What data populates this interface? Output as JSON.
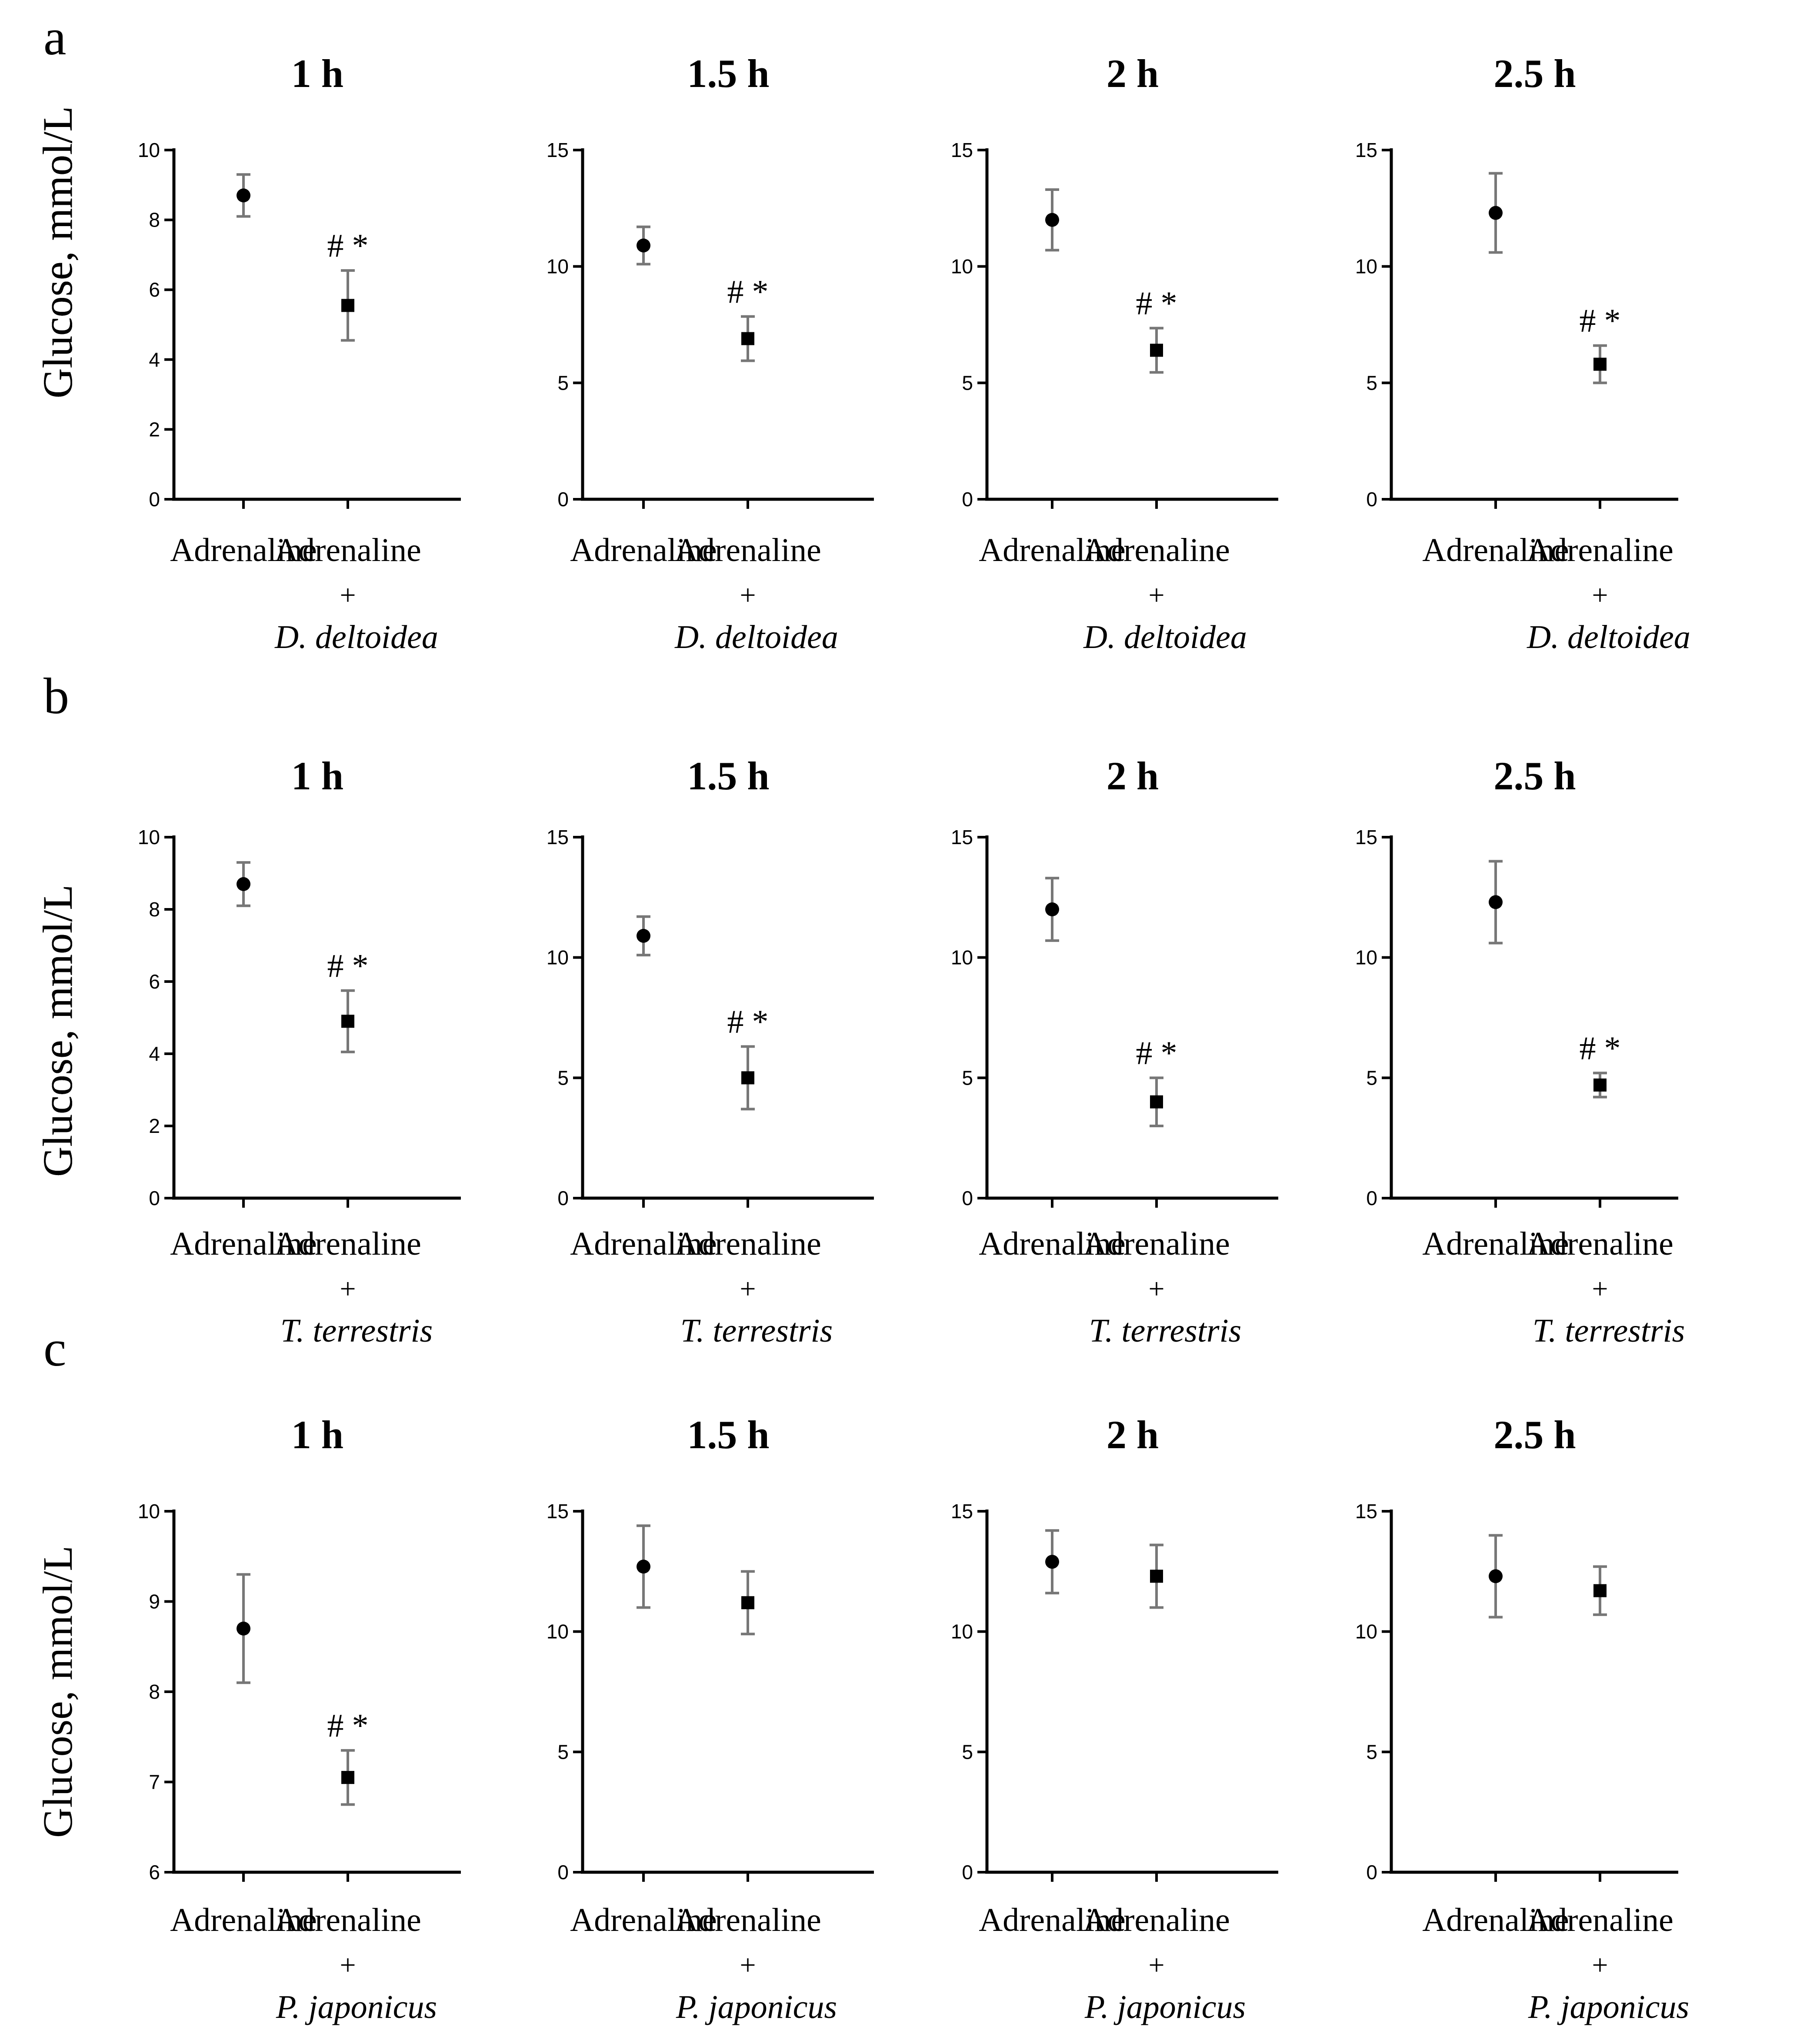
{
  "panel_labels": [
    "a",
    "b",
    "c"
  ],
  "chart_data": [
    {
      "type": "scatter",
      "title": "1 h",
      "ylabel": "Glucose, mmol/L",
      "ylim": [
        0,
        10
      ],
      "yticks": [
        "0",
        "2",
        "4",
        "6",
        "8",
        "10"
      ],
      "categories": [
        "Adrenaline",
        "Adrenaline + D. deltoidea"
      ],
      "category_lines": [
        [
          "Adrenaline"
        ],
        [
          "Adrenaline",
          "+",
          "D. deltoidea"
        ]
      ],
      "series": [
        {
          "name": "Glucose",
          "values": [
            8.7,
            5.55
          ],
          "errors": [
            0.6,
            1.0
          ],
          "markers": [
            "circle",
            "square"
          ],
          "annotations": [
            "",
            "# *"
          ]
        }
      ]
    },
    {
      "type": "scatter",
      "title": "1.5 h",
      "ylabel": "Glucose, mmol/L",
      "ylim": [
        0,
        15
      ],
      "yticks": [
        "0",
        "5",
        "10",
        "15"
      ],
      "categories": [
        "Adrenaline",
        "Adrenaline + D. deltoidea"
      ],
      "category_lines": [
        [
          "Adrenaline"
        ],
        [
          "Adrenaline",
          "+",
          "D. deltoidea"
        ]
      ],
      "series": [
        {
          "name": "Glucose",
          "values": [
            10.9,
            6.9
          ],
          "errors": [
            0.8,
            0.95
          ],
          "markers": [
            "circle",
            "square"
          ],
          "annotations": [
            "",
            "# *"
          ]
        }
      ]
    },
    {
      "type": "scatter",
      "title": "2 h",
      "ylabel": "Glucose, mmol/L",
      "ylim": [
        0,
        15
      ],
      "yticks": [
        "0",
        "5",
        "10",
        "15"
      ],
      "categories": [
        "Adrenaline",
        "Adrenaline + D. deltoidea"
      ],
      "category_lines": [
        [
          "Adrenaline"
        ],
        [
          "Adrenaline",
          "+",
          "D. deltoidea"
        ]
      ],
      "series": [
        {
          "name": "Glucose",
          "values": [
            12.0,
            6.4
          ],
          "errors": [
            1.3,
            0.95
          ],
          "markers": [
            "circle",
            "square"
          ],
          "annotations": [
            "",
            "# *"
          ]
        }
      ]
    },
    {
      "type": "scatter",
      "title": "2.5 h",
      "ylabel": "Glucose, mmol/L",
      "ylim": [
        0,
        15
      ],
      "yticks": [
        "0",
        "5",
        "10",
        "15"
      ],
      "categories": [
        "Adrenaline",
        "Adrenaline + D. deltoidea"
      ],
      "category_lines": [
        [
          "Adrenaline"
        ],
        [
          "Adrenaline",
          "+",
          "D. deltoidea"
        ]
      ],
      "series": [
        {
          "name": "Glucose",
          "values": [
            12.3,
            5.8
          ],
          "errors": [
            1.7,
            0.8
          ],
          "markers": [
            "circle",
            "square"
          ],
          "annotations": [
            "",
            "# *"
          ]
        }
      ]
    },
    {
      "type": "scatter",
      "title": "1 h",
      "ylabel": "Glucose, mmol/L",
      "ylim": [
        0,
        10
      ],
      "yticks": [
        "0",
        "2",
        "4",
        "6",
        "8",
        "10"
      ],
      "categories": [
        "Adrenaline",
        "Adrenaline + T. terrestris"
      ],
      "category_lines": [
        [
          "Adrenaline"
        ],
        [
          "Adrenaline",
          "+",
          "T. terrestris"
        ]
      ],
      "series": [
        {
          "name": "Glucose",
          "values": [
            8.7,
            4.9
          ],
          "errors": [
            0.6,
            0.85
          ],
          "markers": [
            "circle",
            "square"
          ],
          "annotations": [
            "",
            "# *"
          ]
        }
      ]
    },
    {
      "type": "scatter",
      "title": "1.5 h",
      "ylabel": "Glucose, mmol/L",
      "ylim": [
        0,
        15
      ],
      "yticks": [
        "0",
        "5",
        "10",
        "15"
      ],
      "categories": [
        "Adrenaline",
        "Adrenaline + T. terrestris"
      ],
      "category_lines": [
        [
          "Adrenaline"
        ],
        [
          "Adrenaline",
          "+",
          "T. terrestris"
        ]
      ],
      "series": [
        {
          "name": "Glucose",
          "values": [
            10.9,
            5.0
          ],
          "errors": [
            0.8,
            1.3
          ],
          "markers": [
            "circle",
            "square"
          ],
          "annotations": [
            "",
            "# *"
          ]
        }
      ]
    },
    {
      "type": "scatter",
      "title": "2 h",
      "ylabel": "Glucose, mmol/L",
      "ylim": [
        0,
        15
      ],
      "yticks": [
        "0",
        "5",
        "10",
        "15"
      ],
      "categories": [
        "Adrenaline",
        "Adrenaline + T. terrestris"
      ],
      "category_lines": [
        [
          "Adrenaline"
        ],
        [
          "Adrenaline",
          "+",
          "T. terrestris"
        ]
      ],
      "series": [
        {
          "name": "Glucose",
          "values": [
            12.0,
            4.0
          ],
          "errors": [
            1.3,
            1.0
          ],
          "markers": [
            "circle",
            "square"
          ],
          "annotations": [
            "",
            "# *"
          ]
        }
      ]
    },
    {
      "type": "scatter",
      "title": "2.5 h",
      "ylabel": "Glucose, mmol/L",
      "ylim": [
        0,
        15
      ],
      "yticks": [
        "0",
        "5",
        "10",
        "15"
      ],
      "categories": [
        "Adrenaline",
        "Adrenaline + T. terrestris"
      ],
      "category_lines": [
        [
          "Adrenaline"
        ],
        [
          "Adrenaline",
          "+",
          "T. terrestris"
        ]
      ],
      "series": [
        {
          "name": "Glucose",
          "values": [
            12.3,
            4.7
          ],
          "errors": [
            1.7,
            0.5
          ],
          "markers": [
            "circle",
            "square"
          ],
          "annotations": [
            "",
            "# *"
          ]
        }
      ]
    },
    {
      "type": "scatter",
      "title": "1 h",
      "ylabel": "Glucose, mmol/L",
      "ylim": [
        6,
        10
      ],
      "yticks": [
        "6",
        "7",
        "8",
        "9",
        "10"
      ],
      "categories": [
        "Adrenaline",
        "Adrenaline + P. japonicus"
      ],
      "category_lines": [
        [
          "Adrenaline"
        ],
        [
          "Adrenaline",
          "+",
          "P. japonicus"
        ]
      ],
      "series": [
        {
          "name": "Glucose",
          "values": [
            8.7,
            7.05
          ],
          "errors": [
            0.6,
            0.3
          ],
          "markers": [
            "circle",
            "square"
          ],
          "annotations": [
            "",
            "# *"
          ]
        }
      ]
    },
    {
      "type": "scatter",
      "title": "1.5 h",
      "ylabel": "",
      "ylim": [
        0,
        15
      ],
      "yticks": [
        "0",
        "5",
        "10",
        "15"
      ],
      "categories": [
        "Adrenaline",
        "Adrenaline + P. japonicus"
      ],
      "category_lines": [
        [
          "Adrenaline"
        ],
        [
          "Adrenaline",
          "+",
          "P. japonicus"
        ]
      ],
      "series": [
        {
          "name": "Glucose",
          "values": [
            12.7,
            11.2
          ],
          "errors": [
            1.7,
            1.3
          ],
          "markers": [
            "circle",
            "square"
          ],
          "annotations": [
            "",
            ""
          ]
        }
      ]
    },
    {
      "type": "scatter",
      "title": "2 h",
      "ylabel": "",
      "ylim": [
        0,
        15
      ],
      "yticks": [
        "0",
        "5",
        "10",
        "15"
      ],
      "categories": [
        "Adrenaline",
        "Adrenaline + P. japonicus"
      ],
      "category_lines": [
        [
          "Adrenaline"
        ],
        [
          "Adrenaline",
          "+",
          "P. japonicus"
        ]
      ],
      "series": [
        {
          "name": "Glucose",
          "values": [
            12.9,
            12.3
          ],
          "errors": [
            1.3,
            1.3
          ],
          "markers": [
            "circle",
            "square"
          ],
          "annotations": [
            "",
            ""
          ]
        }
      ]
    },
    {
      "type": "scatter",
      "title": "2.5 h",
      "ylabel": "",
      "ylim": [
        0,
        15
      ],
      "yticks": [
        "0",
        "5",
        "10",
        "15"
      ],
      "categories": [
        "Adrenaline",
        "Adrenaline + P. japonicus"
      ],
      "category_lines": [
        [
          "Adrenaline"
        ],
        [
          "Adrenaline",
          "+",
          "P. japonicus"
        ]
      ],
      "series": [
        {
          "name": "Glucose",
          "values": [
            12.3,
            11.7
          ],
          "errors": [
            1.7,
            1.0
          ],
          "markers": [
            "circle",
            "square"
          ],
          "annotations": [
            "",
            ""
          ]
        }
      ]
    }
  ]
}
